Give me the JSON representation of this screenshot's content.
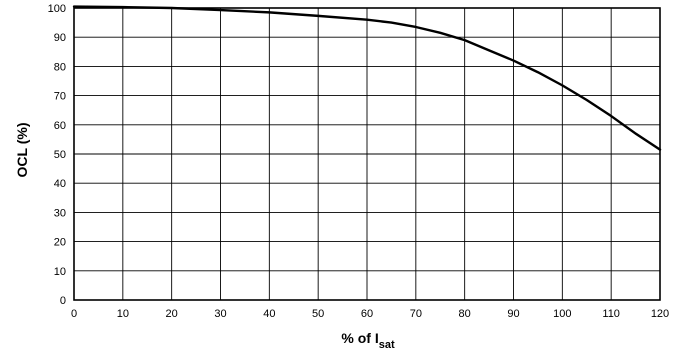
{
  "chart_data": {
    "type": "line",
    "title": "",
    "xlabel": {
      "main": "% of I",
      "subscript": "sat"
    },
    "ylabel": "OCL (%)",
    "xlim": [
      0,
      120
    ],
    "ylim": [
      0,
      100
    ],
    "xticks": [
      0,
      10,
      20,
      30,
      40,
      50,
      60,
      70,
      80,
      90,
      100,
      110,
      120
    ],
    "yticks": [
      0,
      10,
      20,
      30,
      40,
      50,
      60,
      70,
      80,
      90,
      100
    ],
    "grid": true,
    "series": [
      {
        "x": [
          0,
          10,
          20,
          30,
          40,
          50,
          60,
          65,
          70,
          75,
          80,
          85,
          90,
          95,
          100,
          105,
          110,
          115,
          120
        ],
        "y": [
          100.5,
          100.3,
          100,
          99.3,
          98.5,
          97.3,
          96,
          95,
          93.5,
          91.5,
          89,
          85.5,
          82,
          78,
          73.5,
          68.5,
          63,
          57,
          51.5
        ],
        "color": "#000000"
      }
    ]
  }
}
